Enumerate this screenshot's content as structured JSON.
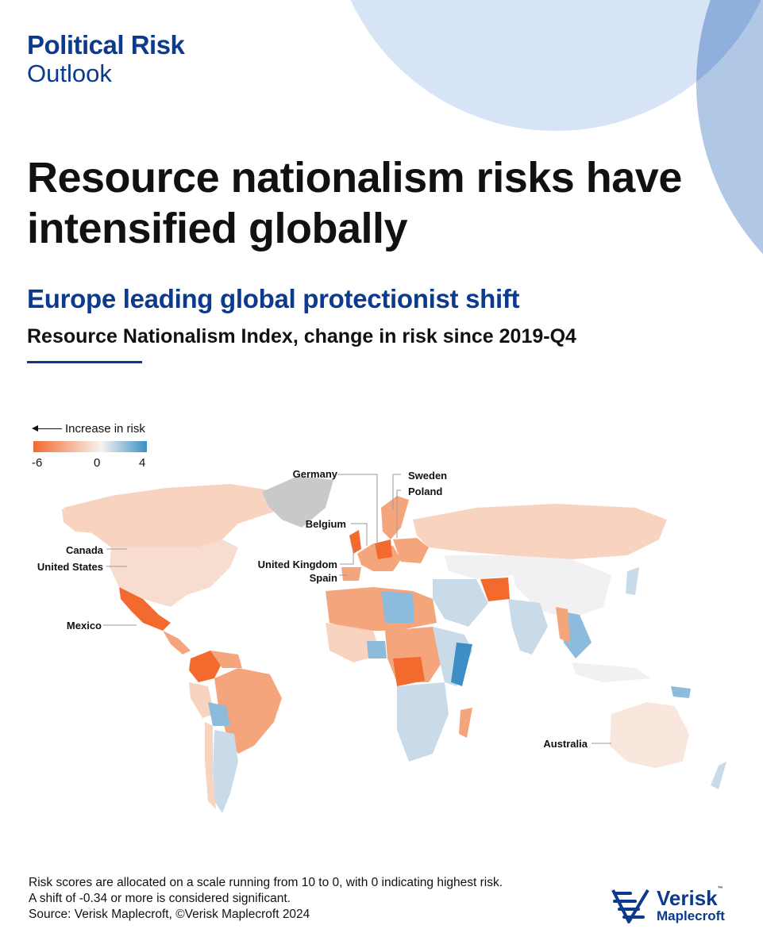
{
  "brand": {
    "title": "Political Risk",
    "subtitle": "Outlook"
  },
  "headline": "Resource nationalism risks have intensified globally",
  "subhead": "Europe leading global protectionist shift",
  "chart_title": "Resource Nationalism Index, change in risk since 2019-Q4",
  "legend": {
    "arrow_label": "Increase in risk",
    "min": "-6",
    "mid": "0",
    "max": "4",
    "color_min": "#f26a2e",
    "color_mid": "#f7f3f1",
    "color_max": "#3b8fc4"
  },
  "callouts": {
    "germany": "Germany",
    "sweden": "Sweden",
    "poland": "Poland",
    "belgium": "Belgium",
    "united_kingdom": "United Kingdom",
    "spain": "Spain",
    "canada": "Canada",
    "united_states": "United States",
    "mexico": "Mexico",
    "australia": "Australia"
  },
  "colors": {
    "brand_blue": "#0b3a8f",
    "strong_increase": "#f26a2e",
    "moderate_increase": "#f5a57c",
    "slight_increase": "#f8d3c0",
    "neutral": "#f1f1f1",
    "slight_decrease": "#c9dbe9",
    "decrease": "#8dbbdc",
    "no_data": "#c9c9c9"
  },
  "footer": {
    "line1": "Risk scores are allocated on a scale running from 10 to 0, with 0 indicating highest risk.",
    "line2": "A shift of -0.34 or more is considered significant.",
    "line3": "Source: Verisk Maplecroft, ©Verisk Maplecroft 2024"
  },
  "logo": {
    "name": "Verisk",
    "tm": "™",
    "sub": "Maplecroft"
  }
}
